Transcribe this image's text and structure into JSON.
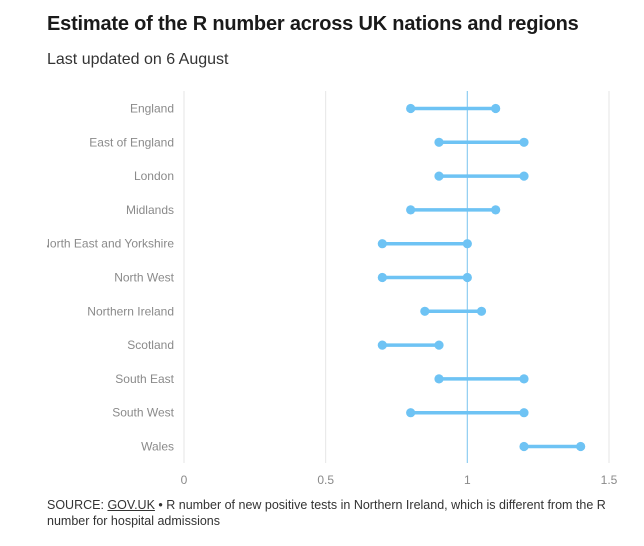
{
  "header": {
    "title": "Estimate of the R number across UK nations and regions",
    "subtitle": "Last updated on 6 August"
  },
  "footer": {
    "source_label": "SOURCE: ",
    "source_link": "GOV.UK",
    "source_note": " • R number of new positive tests in Northern Ireland, which is different from the R number for hospital admissions"
  },
  "colors": {
    "range": "#6ec3f4",
    "reference_line": "#8ecdf2",
    "grid": "#e6e6e6",
    "label": "#8a8a8a"
  },
  "chart_data": {
    "type": "dumbbell",
    "categories": [
      "England",
      "East of England",
      "London",
      "Midlands",
      "North East and Yorkshire",
      "North West",
      "Northern Ireland",
      "Scotland",
      "South East",
      "South West",
      "Wales"
    ],
    "low": [
      0.8,
      0.9,
      0.9,
      0.8,
      0.7,
      0.7,
      0.85,
      0.7,
      0.9,
      0.8,
      1.2
    ],
    "high": [
      1.1,
      1.2,
      1.2,
      1.1,
      1.0,
      1.0,
      1.05,
      0.9,
      1.2,
      1.2,
      1.4
    ],
    "xlim": [
      0,
      1.5
    ],
    "xticks": [
      0,
      0.5,
      1,
      1.5
    ],
    "xtick_labels": [
      "0",
      "0.5",
      "1",
      "1.5"
    ],
    "reference_line": 1,
    "grid": true
  }
}
